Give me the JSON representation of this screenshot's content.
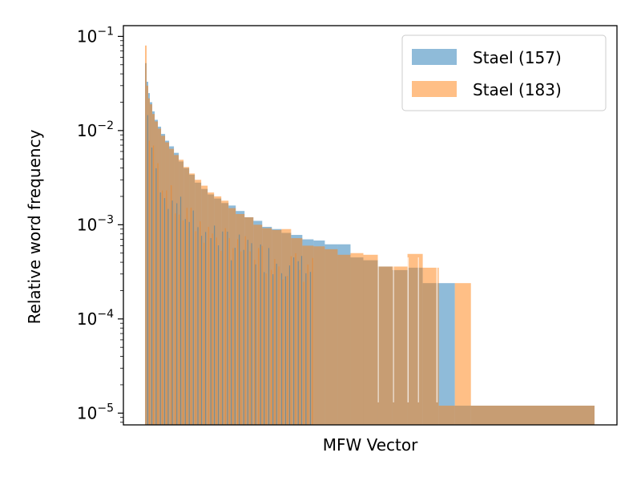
{
  "chart_data": {
    "type": "bar",
    "title": "",
    "xlabel": "MFW Vector",
    "ylabel": "Relative word frequency",
    "yscale": "log",
    "ylim": [
      7.5e-06,
      0.13
    ],
    "y_ticks": [
      {
        "value": 1e-05,
        "base": "10",
        "exp": "−5"
      },
      {
        "value": 0.0001,
        "base": "10",
        "exp": "−4"
      },
      {
        "value": 0.001,
        "base": "10",
        "exp": "−3"
      },
      {
        "value": 0.01,
        "base": "10",
        "exp": "−2"
      },
      {
        "value": 0.1,
        "base": "10",
        "exp": "−1"
      }
    ],
    "x_ticks": [],
    "legend_position": "top-right",
    "grid": false,
    "series": [
      {
        "name": "Stael (157)",
        "color": "#1f77b4",
        "opacity": 0.5
      },
      {
        "name": "Stael (183)",
        "color": "#ff7f0e",
        "opacity": 0.5
      }
    ],
    "bins_157": [
      {
        "x0": 0,
        "x1": 2,
        "y": 0.052
      },
      {
        "x0": 2,
        "x1": 4,
        "y": 0.033
      },
      {
        "x0": 4,
        "x1": 6,
        "y": 0.025
      },
      {
        "x0": 6,
        "x1": 9,
        "y": 0.02
      },
      {
        "x0": 9,
        "x1": 12,
        "y": 0.016
      },
      {
        "x0": 12,
        "x1": 16,
        "y": 0.013
      },
      {
        "x0": 16,
        "x1": 20,
        "y": 0.011
      },
      {
        "x0": 20,
        "x1": 25,
        "y": 0.0092
      },
      {
        "x0": 25,
        "x1": 30,
        "y": 0.0078
      },
      {
        "x0": 30,
        "x1": 36,
        "y": 0.0068
      },
      {
        "x0": 36,
        "x1": 42,
        "y": 0.0058
      },
      {
        "x0": 42,
        "x1": 48,
        "y": 0.0047
      },
      {
        "x0": 48,
        "x1": 55,
        "y": 0.004
      },
      {
        "x0": 55,
        "x1": 62,
        "y": 0.0034
      },
      {
        "x0": 62,
        "x1": 70,
        "y": 0.0028
      },
      {
        "x0": 70,
        "x1": 78,
        "y": 0.0024
      },
      {
        "x0": 78,
        "x1": 86,
        "y": 0.0021
      },
      {
        "x0": 86,
        "x1": 95,
        "y": 0.0019
      },
      {
        "x0": 95,
        "x1": 104,
        "y": 0.0017
      },
      {
        "x0": 104,
        "x1": 113,
        "y": 0.0016
      },
      {
        "x0": 113,
        "x1": 124,
        "y": 0.0014
      },
      {
        "x0": 124,
        "x1": 135,
        "y": 0.0012
      },
      {
        "x0": 135,
        "x1": 146,
        "y": 0.0011
      },
      {
        "x0": 146,
        "x1": 158,
        "y": 0.00095
      },
      {
        "x0": 158,
        "x1": 170,
        "y": 0.0009
      },
      {
        "x0": 170,
        "x1": 182,
        "y": 0.00082
      },
      {
        "x0": 182,
        "x1": 196,
        "y": 0.00078
      },
      {
        "x0": 196,
        "x1": 210,
        "y": 0.0007
      },
      {
        "x0": 210,
        "x1": 224,
        "y": 0.00068
      },
      {
        "x0": 224,
        "x1": 240,
        "y": 0.00062
      },
      {
        "x0": 240,
        "x1": 256,
        "y": 0.00062
      },
      {
        "x0": 256,
        "x1": 272,
        "y": 0.00045
      },
      {
        "x0": 272,
        "x1": 290,
        "y": 0.00042
      },
      {
        "x0": 290,
        "x1": 308,
        "y": 0.00036
      },
      {
        "x0": 308,
        "x1": 327,
        "y": 0.00033
      },
      {
        "x0": 327,
        "x1": 346,
        "y": 0.00035
      },
      {
        "x0": 346,
        "x1": 366,
        "y": 0.00024
      },
      {
        "x0": 366,
        "x1": 386,
        "y": 0.00024
      },
      {
        "x0": 386,
        "x1": 406,
        "y": 1.2e-05
      },
      {
        "x0": 406,
        "x1": 560,
        "y": 1.2e-05
      }
    ],
    "bins_183": [
      {
        "x0": 0,
        "x1": 2,
        "y": 0.08
      },
      {
        "x0": 2,
        "x1": 4,
        "y": 0.03
      },
      {
        "x0": 4,
        "x1": 6,
        "y": 0.022
      },
      {
        "x0": 6,
        "x1": 9,
        "y": 0.019
      },
      {
        "x0": 9,
        "x1": 12,
        "y": 0.015
      },
      {
        "x0": 12,
        "x1": 16,
        "y": 0.0125
      },
      {
        "x0": 16,
        "x1": 20,
        "y": 0.0105
      },
      {
        "x0": 20,
        "x1": 25,
        "y": 0.0088
      },
      {
        "x0": 25,
        "x1": 30,
        "y": 0.0075
      },
      {
        "x0": 30,
        "x1": 36,
        "y": 0.0064
      },
      {
        "x0": 36,
        "x1": 42,
        "y": 0.0055
      },
      {
        "x0": 42,
        "x1": 48,
        "y": 0.0049
      },
      {
        "x0": 48,
        "x1": 55,
        "y": 0.0041
      },
      {
        "x0": 55,
        "x1": 62,
        "y": 0.0035
      },
      {
        "x0": 62,
        "x1": 70,
        "y": 0.003
      },
      {
        "x0": 70,
        "x1": 78,
        "y": 0.0026
      },
      {
        "x0": 78,
        "x1": 86,
        "y": 0.0022
      },
      {
        "x0": 86,
        "x1": 95,
        "y": 0.002
      },
      {
        "x0": 95,
        "x1": 104,
        "y": 0.0018
      },
      {
        "x0": 104,
        "x1": 113,
        "y": 0.0015
      },
      {
        "x0": 113,
        "x1": 124,
        "y": 0.0013
      },
      {
        "x0": 124,
        "x1": 135,
        "y": 0.0012
      },
      {
        "x0": 135,
        "x1": 146,
        "y": 0.001
      },
      {
        "x0": 146,
        "x1": 158,
        "y": 0.00092
      },
      {
        "x0": 158,
        "x1": 170,
        "y": 0.00088
      },
      {
        "x0": 170,
        "x1": 182,
        "y": 0.0009
      },
      {
        "x0": 182,
        "x1": 196,
        "y": 0.00072
      },
      {
        "x0": 196,
        "x1": 210,
        "y": 0.0006
      },
      {
        "x0": 210,
        "x1": 224,
        "y": 0.00059
      },
      {
        "x0": 224,
        "x1": 240,
        "y": 0.00055
      },
      {
        "x0": 240,
        "x1": 256,
        "y": 0.00048
      },
      {
        "x0": 256,
        "x1": 272,
        "y": 0.0005
      },
      {
        "x0": 272,
        "x1": 290,
        "y": 0.00048
      },
      {
        "x0": 290,
        "x1": 308,
        "y": 0.00036
      },
      {
        "x0": 308,
        "x1": 327,
        "y": 0.00036
      },
      {
        "x0": 327,
        "x1": 346,
        "y": 0.00049
      },
      {
        "x0": 346,
        "x1": 366,
        "y": 0.00035
      },
      {
        "x0": 366,
        "x1": 386,
        "y": 1.2e-05
      },
      {
        "x0": 386,
        "x1": 406,
        "y": 0.00024
      },
      {
        "x0": 406,
        "x1": 560,
        "y": 1.2e-05
      }
    ]
  }
}
